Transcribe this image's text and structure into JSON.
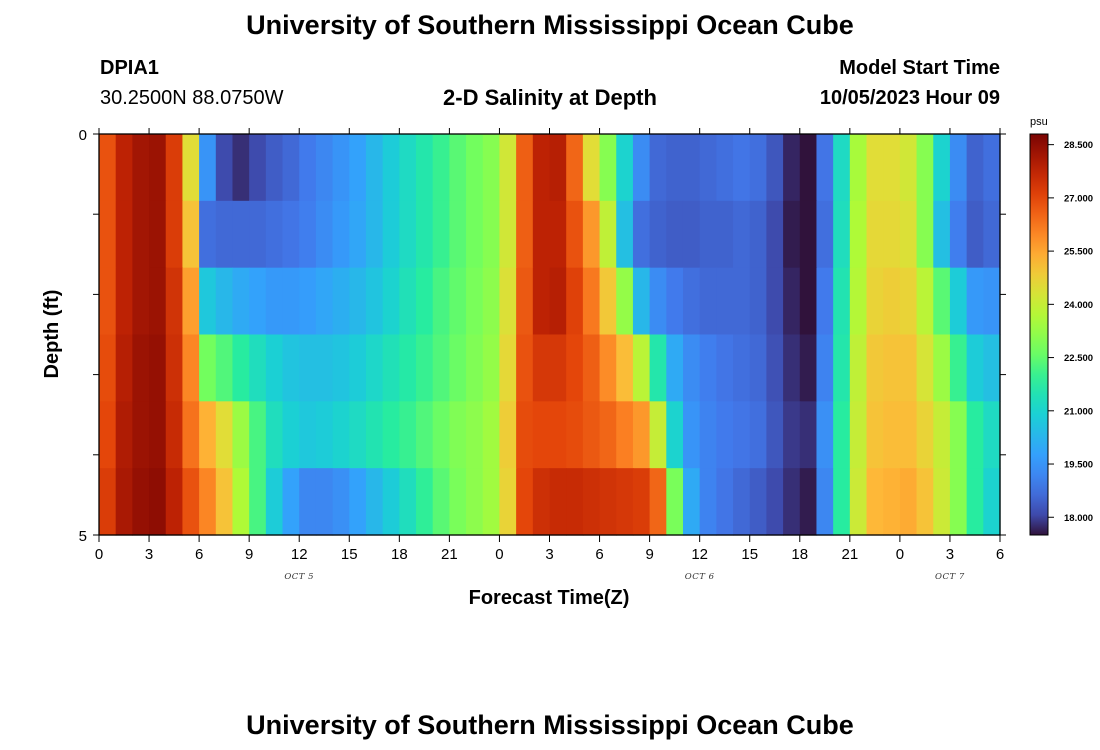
{
  "header": {
    "title": "University of Southern Mississippi Ocean Cube",
    "station": "DPIA1",
    "coords": "30.2500N  88.0750W",
    "plot_title": "2-D Salinity at Depth",
    "model_label": "Model Start Time",
    "model_time": "10/05/2023 Hour 09"
  },
  "footer": {
    "title": "University of Southern Mississippi Ocean Cube"
  },
  "chart_data": {
    "type": "heatmap",
    "title": "2-D Salinity at Depth",
    "xlabel": "Forecast Time(Z)",
    "ylabel": "Depth (ft)",
    "units": "psu",
    "x_hours": [
      0,
      1,
      2,
      3,
      4,
      5,
      6,
      7,
      8,
      9,
      10,
      11,
      12,
      13,
      14,
      15,
      16,
      17,
      18,
      19,
      20,
      21,
      22,
      23,
      24,
      25,
      26,
      27,
      28,
      29,
      30,
      31,
      32,
      33,
      34,
      35,
      36,
      37,
      38,
      39,
      40,
      41,
      42,
      43,
      44,
      45,
      46,
      47,
      48,
      49,
      50,
      51,
      52,
      53
    ],
    "x_ticks": [
      "0",
      "3",
      "6",
      "9",
      "12",
      "15",
      "18",
      "21",
      "0",
      "3",
      "6",
      "9",
      "12",
      "15",
      "18",
      "21",
      "0",
      "3",
      "6"
    ],
    "day_labels": [
      {
        "text": "OCT 5",
        "hour": 12
      },
      {
        "text": "OCT 6",
        "hour": 36
      },
      {
        "text": "OCT 7",
        "hour": 51
      }
    ],
    "y_ticks": [
      "0",
      "5"
    ],
    "depth_levels_ft": [
      0,
      1,
      2,
      3,
      4,
      5
    ],
    "clim": [
      17.5,
      28.8
    ],
    "colorbar_ticks": [
      "28.500",
      "27.000",
      "25.500",
      "24.000",
      "22.500",
      "21.000",
      "19.500",
      "18.000"
    ],
    "colorbar_values": [
      28.5,
      27.0,
      25.5,
      24.0,
      22.5,
      21.0,
      19.5,
      18.0
    ],
    "salinity": [
      [
        26.8,
        27.8,
        28.2,
        28.3,
        27.2,
        24.5,
        19.5,
        18.1,
        17.8,
        18.1,
        18.4,
        18.6,
        18.9,
        19.2,
        19.5,
        19.8,
        20.3,
        20.8,
        21.2,
        21.6,
        22.0,
        22.4,
        22.7,
        23.0,
        24.2,
        26.6,
        27.8,
        27.9,
        26.5,
        24.5,
        23.0,
        21.0,
        19.3,
        18.6,
        18.5,
        18.5,
        18.6,
        18.7,
        18.8,
        18.7,
        18.3,
        17.7,
        17.4,
        18.8,
        21.2,
        23.5,
        24.5,
        24.5,
        24.2,
        23.0,
        21.0,
        19.3,
        18.5,
        18.7
      ],
      [
        26.8,
        27.8,
        28.2,
        28.3,
        27.2,
        25.0,
        18.7,
        18.6,
        18.6,
        18.6,
        18.7,
        18.8,
        19.0,
        19.3,
        19.6,
        19.9,
        20.3,
        20.8,
        21.2,
        21.6,
        22.0,
        22.4,
        22.7,
        23.0,
        24.2,
        26.6,
        27.8,
        27.8,
        26.8,
        25.7,
        23.9,
        20.5,
        18.7,
        18.5,
        18.4,
        18.4,
        18.5,
        18.5,
        18.6,
        18.5,
        18.1,
        17.6,
        17.3,
        18.7,
        21.3,
        23.6,
        24.6,
        24.6,
        24.4,
        23.0,
        20.5,
        19.0,
        18.4,
        18.6
      ],
      [
        26.8,
        27.8,
        28.2,
        28.3,
        27.4,
        25.6,
        20.7,
        20.3,
        20.0,
        19.8,
        19.6,
        19.6,
        19.7,
        19.9,
        20.1,
        20.3,
        20.6,
        21.0,
        21.4,
        21.8,
        22.2,
        22.5,
        22.8,
        23.1,
        24.4,
        26.7,
        27.8,
        27.9,
        27.1,
        26.2,
        24.9,
        23.2,
        20.3,
        19.3,
        18.9,
        18.7,
        18.6,
        18.6,
        18.6,
        18.5,
        18.1,
        17.7,
        17.4,
        18.9,
        21.5,
        23.7,
        24.7,
        24.8,
        24.7,
        23.8,
        22.4,
        20.8,
        19.6,
        19.5
      ],
      [
        26.9,
        27.9,
        28.3,
        28.4,
        27.5,
        26.0,
        22.7,
        22.3,
        21.8,
        21.3,
        20.9,
        20.6,
        20.5,
        20.5,
        20.6,
        20.8,
        21.1,
        21.4,
        21.7,
        22.0,
        22.3,
        22.6,
        22.9,
        23.2,
        24.6,
        26.8,
        27.3,
        27.3,
        27.0,
        26.6,
        25.9,
        25.1,
        23.8,
        21.6,
        20.0,
        19.3,
        19.0,
        18.8,
        18.7,
        18.6,
        18.2,
        17.8,
        17.6,
        19.1,
        21.6,
        23.9,
        24.9,
        25.0,
        25.0,
        24.3,
        23.3,
        22.0,
        20.8,
        20.5
      ],
      [
        27.0,
        28.0,
        28.3,
        28.4,
        27.6,
        26.3,
        25.3,
        24.5,
        23.3,
        22.2,
        21.3,
        20.9,
        20.7,
        20.8,
        21.0,
        21.2,
        21.5,
        21.8,
        22.0,
        22.3,
        22.6,
        22.9,
        23.1,
        23.4,
        24.8,
        26.9,
        27.0,
        27.0,
        26.9,
        26.7,
        26.5,
        26.1,
        25.7,
        24.0,
        21.0,
        19.5,
        19.1,
        18.9,
        18.8,
        18.7,
        18.3,
        17.9,
        17.8,
        19.4,
        21.8,
        24.0,
        25.0,
        25.1,
        25.1,
        24.7,
        24.0,
        23.0,
        21.8,
        21.2
      ],
      [
        27.2,
        28.1,
        28.4,
        28.5,
        27.8,
        26.8,
        26.0,
        25.0,
        23.6,
        22.2,
        20.8,
        19.8,
        19.2,
        19.2,
        19.4,
        19.8,
        20.3,
        20.8,
        21.3,
        21.9,
        22.4,
        22.8,
        23.1,
        23.4,
        24.7,
        27.0,
        27.5,
        27.6,
        27.6,
        27.5,
        27.4,
        27.3,
        27.2,
        26.5,
        22.8,
        20.0,
        19.1,
        18.8,
        18.6,
        18.4,
        18.1,
        17.8,
        17.6,
        19.2,
        21.8,
        24.1,
        25.2,
        25.3,
        25.4,
        25.0,
        24.1,
        23.0,
        21.8,
        21.0
      ]
    ]
  }
}
